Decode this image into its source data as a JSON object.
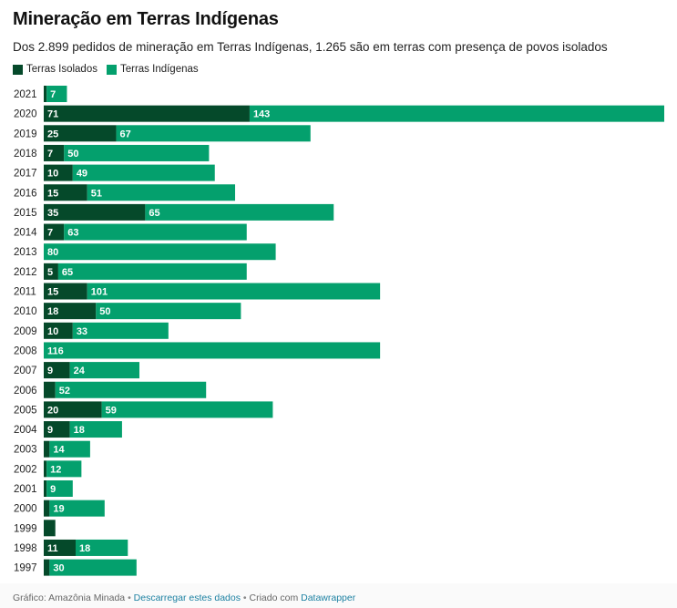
{
  "title": "Mineração em Terras Indígenas",
  "subtitle": "Dos 2.899 pedidos de mineração em Terras Indígenas, 1.265 são em terras com presença de povos isolados",
  "colors": {
    "isolados": "#05492a",
    "indigenas": "#04a06d",
    "label_text": "#ffffff"
  },
  "chart_data": {
    "type": "bar",
    "orientation": "horizontal",
    "stacked": true,
    "categories": [
      "2021",
      "2020",
      "2019",
      "2018",
      "2017",
      "2016",
      "2015",
      "2014",
      "2013",
      "2012",
      "2011",
      "2010",
      "2009",
      "2008",
      "2007",
      "2006",
      "2005",
      "2004",
      "2003",
      "2002",
      "2001",
      "2000",
      "1999",
      "1998",
      "1997"
    ],
    "series": [
      {
        "name": "Terras Isolados",
        "values": [
          1,
          71,
          25,
          7,
          10,
          15,
          35,
          7,
          0,
          5,
          15,
          18,
          10,
          0,
          9,
          4,
          20,
          9,
          2,
          1,
          1,
          2,
          4,
          11,
          2
        ],
        "labels": [
          "",
          "71",
          "25",
          "7",
          "10",
          "15",
          "35",
          "7",
          "",
          "5",
          "15",
          "18",
          "10",
          "",
          "9",
          "",
          "20",
          "9",
          "",
          "",
          "",
          "",
          "",
          "11",
          ""
        ]
      },
      {
        "name": "Terras Indígenas",
        "values": [
          7,
          143,
          67,
          50,
          49,
          51,
          65,
          63,
          80,
          65,
          101,
          50,
          33,
          116,
          24,
          52,
          59,
          18,
          14,
          12,
          9,
          19,
          0,
          18,
          30
        ],
        "labels": [
          "7",
          "143",
          "67",
          "50",
          "49",
          "51",
          "65",
          "63",
          "80",
          "65",
          "101",
          "50",
          "33",
          "116",
          "24",
          "52",
          "59",
          "18",
          "14",
          "12",
          "9",
          "19",
          "",
          "18",
          "30"
        ]
      }
    ],
    "xlim": [
      0,
      214
    ],
    "grid": false,
    "legend": "top-left"
  },
  "footer": {
    "prefix": "Gráfico: Amazônia Minada",
    "sep": " • ",
    "download": "Descarregar estes dados",
    "created": "Criado com",
    "tool": "Datawrapper"
  }
}
